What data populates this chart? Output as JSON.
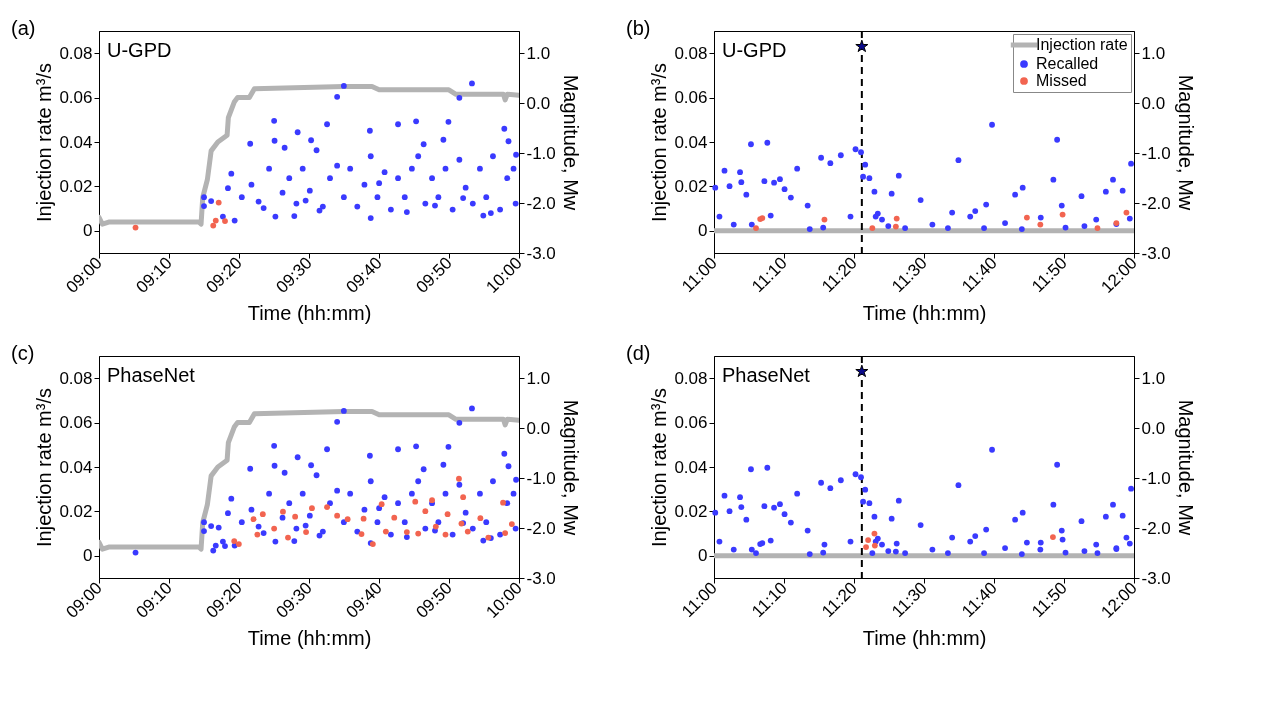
{
  "chart_data": [
    {
      "type": "scatter",
      "xlabel": "Time (hh:mm)",
      "ylabel": "Injection rate m³/s",
      "y2label": "Magnitude, Mw",
      "annotations": [
        "(a)",
        "U-GPD"
      ],
      "xlim": [
        9,
        10
      ],
      "xticks": [
        {
          "value": 9,
          "label": "09:00"
        },
        {
          "value": 9.1667,
          "label": "09:10"
        },
        {
          "value": 9.3333,
          "label": "09:20"
        },
        {
          "value": 9.5,
          "label": "09:30"
        },
        {
          "value": 9.6667,
          "label": "09:40"
        },
        {
          "value": 9.8333,
          "label": "09:50"
        },
        {
          "value": 10,
          "label": "10:00"
        }
      ],
      "ylim": [
        -0.01,
        0.09
      ],
      "yticks": [
        0,
        0.02,
        0.04,
        0.06,
        0.08
      ],
      "y2lim": [
        -3.0,
        1.45
      ],
      "y2ticks": [
        {
          "value": -3,
          "label": "-3.0"
        },
        {
          "value": -2,
          "label": "-2.0"
        },
        {
          "value": -1,
          "label": "-1.0"
        },
        {
          "value": 0,
          "label": "0.0"
        },
        {
          "value": 1,
          "label": "1.0"
        }
      ],
      "series": [
        {
          "type": "line",
          "color": "#b3b3b3",
          "x": [
            9,
            9.008,
            9.025,
            9.238,
            9.243,
            9.247,
            9.258,
            9.267,
            9.283,
            9.305,
            9.308,
            9.322,
            9.33,
            9.358,
            9.37,
            9.583,
            9.65,
            9.667,
            9.833,
            9.85,
            9.963,
            9.967,
            9.972,
            10
          ],
          "values": [
            0.006,
            0.003,
            0.004,
            0.004,
            0.003,
            0.015,
            0.023,
            0.036,
            0.04,
            0.043,
            0.051,
            0.058,
            0.06,
            0.06,
            0.064,
            0.065,
            0.065,
            0.0635,
            0.0635,
            0.0615,
            0.0615,
            0.059,
            0.0615,
            0.061
          ]
        },
        {
          "axis": "y2",
          "marker": "circle",
          "color": "#3a3aff",
          "x": [
            9.583,
            9.567,
            9.888,
            9.858,
            9.417,
            9.543,
            9.755,
            9.832,
            9.965,
            9.473,
            9.645,
            9.712,
            9.418,
            9.505,
            9.82,
            9.975,
            9.36,
            9.442,
            9.773,
            9.993,
            9.315,
            9.307,
            9.25,
            9.25,
            9.267,
            9.295,
            9.323,
            9.42,
            9.647,
            9.915,
            9.465,
            9.34,
            9.363,
            9.38,
            9.405,
            9.437,
            9.453,
            9.47,
            9.485,
            9.502,
            9.518,
            9.533,
            9.55,
            9.567,
            9.583,
            9.598,
            9.615,
            9.632,
            9.647,
            9.663,
            9.68,
            9.695,
            9.712,
            9.728,
            9.745,
            9.76,
            9.777,
            9.793,
            9.808,
            9.825,
            9.842,
            9.858,
            9.873,
            9.89,
            9.907,
            9.922,
            9.938,
            9.955,
            9.972,
            9.987,
            9.992,
            9.392,
            9.525,
            9.733,
            9.8,
            9.933,
            9.492,
            9.667,
            9.867
          ],
          "values": [
            0.35,
            0.13,
            0.4,
            0.11,
            -0.35,
            -0.42,
            -0.36,
            -0.37,
            -0.51,
            -0.58,
            -0.55,
            -0.42,
            -0.75,
            -0.74,
            -0.73,
            -0.76,
            -0.81,
            -0.89,
            -0.82,
            -1.03,
            -1.41,
            -1.7,
            -1.88,
            -2.06,
            -1.96,
            -2.27,
            -2.35,
            -2.27,
            -2.3,
            -2.25,
            -2.26,
            -1.88,
            -1.63,
            -1.97,
            -1.31,
            -1.79,
            -1.5,
            -2.01,
            -1.31,
            -1.75,
            -0.94,
            -2.07,
            -1.5,
            -1.25,
            -1.88,
            -1.31,
            -2.07,
            -1.63,
            -1.06,
            -1.88,
            -1.38,
            -2.13,
            -1.5,
            -1.88,
            -1.31,
            -1.06,
            -2.01,
            -1.5,
            -1.88,
            -1.31,
            -2.13,
            -1.13,
            -1.69,
            -2.01,
            -1.31,
            -1.88,
            -1.06,
            -2.13,
            -1.5,
            -1.31,
            -2.01,
            -2.1,
            -2.15,
            -2.18,
            -2.05,
            -2.2,
            -1.95,
            -1.6,
            -1.9
          ]
        },
        {
          "axis": "y2",
          "marker": "circle",
          "color": "#f26450",
          "x": [
            9.087,
            9.272,
            9.278,
            9.285,
            9.3
          ],
          "values": [
            -2.49,
            -2.45,
            -2.35,
            -1.99,
            -2.36
          ]
        }
      ]
    },
    {
      "type": "scatter",
      "xlabel": "Time (hh:mm)",
      "ylabel": "Injection rate m³/s",
      "y2label": "Magnitude, Mw",
      "annotations": [
        "(b)",
        "U-GPD"
      ],
      "legend": "top right",
      "xlim": [
        11,
        12
      ],
      "xticks": [
        {
          "value": 11,
          "label": "11:00"
        },
        {
          "value": 11.1667,
          "label": "11:10"
        },
        {
          "value": 11.3333,
          "label": "11:20"
        },
        {
          "value": 11.5,
          "label": "11:30"
        },
        {
          "value": 11.6667,
          "label": "11:40"
        },
        {
          "value": 11.8333,
          "label": "11:50"
        },
        {
          "value": 12,
          "label": "12:00"
        }
      ],
      "ylim": [
        -0.01,
        0.09
      ],
      "yticks": [
        0,
        0.02,
        0.04,
        0.06,
        0.08
      ],
      "y2lim": [
        -3.0,
        1.45
      ],
      "y2ticks": [
        {
          "value": -3,
          "label": "-3.0"
        },
        {
          "value": -2,
          "label": "-2.0"
        },
        {
          "value": -1,
          "label": "-1.0"
        },
        {
          "value": 0,
          "label": "0.0"
        },
        {
          "value": 1,
          "label": "1.0"
        }
      ],
      "ref_lines": [
        {
          "axis": "x",
          "value": 11.352,
          "color": "#000000",
          "line_style": "dashed"
        }
      ],
      "series": [
        {
          "name": "Injection rate",
          "type": "line",
          "color": "#b3b3b3",
          "x": [
            11,
            12
          ],
          "values": [
            0,
            0
          ]
        },
        {
          "name": "Recalled",
          "axis": "y2",
          "marker": "circle",
          "color": "#3a3aff",
          "x": [
            11.003,
            11.025,
            11.037,
            11.013,
            11.062,
            11.065,
            11.077,
            11.088,
            11.127,
            11.12,
            11.143,
            11.157,
            11.168,
            11.183,
            11.198,
            11.223,
            11.255,
            11.277,
            11.302,
            11.337,
            11.35,
            11.355,
            11.36,
            11.37,
            11.382,
            11.39,
            11.44,
            11.423,
            11.492,
            11.582,
            11.662,
            11.648,
            11.717,
            11.735,
            11.808,
            11.817,
            11.828,
            11.875,
            11.933,
            11.95,
            11.973,
            11.993,
            11.99,
            11.047,
            11.09,
            11.135,
            11.228,
            11.26,
            11.325,
            11.415,
            11.455,
            11.52,
            11.557,
            11.61,
            11.643,
            11.693,
            11.733,
            11.778,
            11.837,
            11.882,
            11.91,
            11.958,
            11.567,
            11.622,
            11.385,
            11.4
          ],
          "values": [
            -1.69,
            -1.35,
            -1.66,
            -2.27,
            -1.38,
            -1.58,
            -1.83,
            -0.82,
            -0.79,
            -1.56,
            -1.59,
            -1.52,
            -1.72,
            -1.89,
            -1.31,
            -2.05,
            -1.09,
            -1.2,
            -1.04,
            -0.92,
            -0.98,
            -1.47,
            -1.23,
            -1.5,
            -1.77,
            -2.21,
            -1.45,
            -1.81,
            -1.94,
            -1.14,
            -0.43,
            -2.03,
            -1.83,
            -1.69,
            -1.53,
            -0.73,
            -2.05,
            -1.86,
            -1.77,
            -1.53,
            -1.75,
            -1.21,
            -2.31,
            -2.43,
            -2.43,
            -2.25,
            -2.52,
            -2.49,
            -2.27,
            -2.46,
            -2.5,
            -2.43,
            -2.5,
            -2.27,
            -2.5,
            -2.4,
            -2.52,
            -2.29,
            -2.49,
            -2.46,
            -2.33,
            -2.42,
            -2.19,
            -2.16,
            -2.27,
            -2.33
          ]
        },
        {
          "name": "Missed",
          "axis": "y2",
          "marker": "circle",
          "color": "#f26450",
          "x": [
            11.11,
            11.115,
            11.1,
            11.263,
            11.377,
            11.435,
            11.433,
            11.745,
            11.777,
            11.83,
            11.913,
            11.958,
            11.982
          ],
          "values": [
            -2.32,
            -2.3,
            -2.5,
            -2.33,
            -2.5,
            -2.31,
            -2.47,
            -2.29,
            -2.43,
            -2.23,
            -2.5,
            -2.4,
            -2.19
          ]
        },
        {
          "axis": "y2",
          "marker": "star",
          "color": "#0a0a8c",
          "x": [
            11.352
          ],
          "values": [
            1.14
          ]
        }
      ]
    },
    {
      "type": "scatter",
      "xlabel": "Time (hh:mm)",
      "ylabel": "Injection rate m³/s",
      "y2label": "Magnitude, Mw",
      "annotations": [
        "(c)",
        "PhaseNet"
      ],
      "xlim": [
        9,
        10
      ],
      "xticks": [
        {
          "value": 9,
          "label": "09:00"
        },
        {
          "value": 9.1667,
          "label": "09:10"
        },
        {
          "value": 9.3333,
          "label": "09:20"
        },
        {
          "value": 9.5,
          "label": "09:30"
        },
        {
          "value": 9.6667,
          "label": "09:40"
        },
        {
          "value": 9.8333,
          "label": "09:50"
        },
        {
          "value": 10,
          "label": "10:00"
        }
      ],
      "ylim": [
        -0.01,
        0.09
      ],
      "yticks": [
        0,
        0.02,
        0.04,
        0.06,
        0.08
      ],
      "y2lim": [
        -3.0,
        1.45
      ],
      "y2ticks": [
        {
          "value": -3,
          "label": "-3.0"
        },
        {
          "value": -2,
          "label": "-2.0"
        },
        {
          "value": -1,
          "label": "-1.0"
        },
        {
          "value": 0,
          "label": "0.0"
        },
        {
          "value": 1,
          "label": "1.0"
        }
      ],
      "series": [
        {
          "type": "line",
          "color": "#b3b3b3",
          "x": [
            9,
            9.008,
            9.025,
            9.238,
            9.243,
            9.247,
            9.258,
            9.267,
            9.283,
            9.305,
            9.308,
            9.322,
            9.33,
            9.358,
            9.37,
            9.583,
            9.65,
            9.667,
            9.833,
            9.85,
            9.963,
            9.967,
            9.972,
            10
          ],
          "values": [
            0.006,
            0.003,
            0.004,
            0.004,
            0.003,
            0.015,
            0.023,
            0.036,
            0.04,
            0.043,
            0.051,
            0.058,
            0.06,
            0.06,
            0.064,
            0.065,
            0.065,
            0.0635,
            0.0635,
            0.0615,
            0.0615,
            0.059,
            0.0615,
            0.061
          ]
        },
        {
          "axis": "y2",
          "marker": "circle",
          "color": "#3a3aff",
          "x": [
            9.583,
            9.567,
            9.888,
            9.858,
            9.417,
            9.543,
            9.755,
            9.832,
            9.965,
            9.473,
            9.645,
            9.712,
            9.418,
            9.505,
            9.82,
            9.975,
            9.36,
            9.442,
            9.773,
            9.993,
            9.315,
            9.307,
            9.25,
            9.25,
            9.267,
            9.295,
            9.323,
            9.42,
            9.647,
            9.915,
            9.465,
            9.34,
            9.363,
            9.38,
            9.405,
            9.437,
            9.453,
            9.47,
            9.485,
            9.502,
            9.518,
            9.533,
            9.55,
            9.567,
            9.583,
            9.598,
            9.615,
            9.632,
            9.647,
            9.663,
            9.68,
            9.695,
            9.712,
            9.728,
            9.745,
            9.76,
            9.777,
            9.793,
            9.808,
            9.825,
            9.842,
            9.858,
            9.873,
            9.89,
            9.907,
            9.922,
            9.938,
            9.955,
            9.972,
            9.987,
            9.992,
            9.392,
            9.525,
            9.733,
            9.8,
            9.933,
            9.492,
            9.667,
            9.867,
            9.087,
            9.272,
            9.278,
            9.285,
            9.3
          ],
          "values": [
            0.35,
            0.13,
            0.4,
            0.11,
            -0.35,
            -0.42,
            -0.36,
            -0.37,
            -0.51,
            -0.58,
            -0.55,
            -0.42,
            -0.75,
            -0.74,
            -0.73,
            -0.76,
            -0.81,
            -0.89,
            -0.82,
            -1.03,
            -1.41,
            -1.7,
            -1.88,
            -2.06,
            -1.96,
            -2.27,
            -2.35,
            -2.27,
            -2.3,
            -2.25,
            -2.26,
            -1.88,
            -1.63,
            -1.97,
            -1.31,
            -1.79,
            -1.5,
            -2.01,
            -1.31,
            -1.75,
            -0.94,
            -2.07,
            -1.5,
            -1.25,
            -1.88,
            -1.31,
            -2.07,
            -1.63,
            -1.06,
            -1.88,
            -1.38,
            -2.13,
            -1.5,
            -1.88,
            -1.31,
            -1.06,
            -2.01,
            -1.5,
            -1.88,
            -1.31,
            -2.13,
            -1.13,
            -1.69,
            -2.01,
            -1.31,
            -1.88,
            -1.06,
            -2.13,
            -1.5,
            -1.31,
            -2.01,
            -2.1,
            -2.15,
            -2.18,
            -2.05,
            -2.2,
            -1.95,
            -1.6,
            -1.9,
            -2.49,
            -2.45,
            -2.35,
            -1.99,
            -2.36
          ]
        },
        {
          "axis": "y2",
          "marker": "circle",
          "color": "#f26450",
          "x": [
            9.39,
            9.368,
            9.322,
            9.333,
            9.377,
            9.417,
            9.438,
            9.45,
            9.467,
            9.493,
            9.507,
            9.543,
            9.567,
            9.592,
            9.625,
            9.63,
            9.652,
            9.673,
            9.683,
            9.703,
            9.733,
            9.753,
            9.76,
            9.777,
            9.793,
            9.802,
            9.825,
            9.83,
            9.857,
            9.863,
            9.867,
            9.878,
            9.908,
            9.927,
            9.962,
            9.967,
            9.983
          ],
          "values": [
            -1.72,
            -1.82,
            -2.26,
            -2.32,
            -2.13,
            -2.01,
            -1.67,
            -2.19,
            -1.77,
            -2.08,
            -1.6,
            -1.58,
            -1.75,
            -1.82,
            -2.12,
            -1.81,
            -2.32,
            -1.52,
            -2.07,
            -1.79,
            -2.08,
            -1.47,
            -2.11,
            -1.66,
            -1.44,
            -1.97,
            -2.13,
            -1.72,
            -1.01,
            -1.91,
            -1.38,
            -2.07,
            -1.8,
            -2.19,
            -1.49,
            -2.1,
            -1.92
          ]
        }
      ]
    },
    {
      "type": "scatter",
      "xlabel": "Time (hh:mm)",
      "ylabel": "Injection rate m³/s",
      "y2label": "Magnitude, Mw",
      "annotations": [
        "(d)",
        "PhaseNet"
      ],
      "xlim": [
        11,
        12
      ],
      "xticks": [
        {
          "value": 11,
          "label": "11:00"
        },
        {
          "value": 11.1667,
          "label": "11:10"
        },
        {
          "value": 11.3333,
          "label": "11:20"
        },
        {
          "value": 11.5,
          "label": "11:30"
        },
        {
          "value": 11.6667,
          "label": "11:40"
        },
        {
          "value": 11.8333,
          "label": "11:50"
        },
        {
          "value": 12,
          "label": "12:00"
        }
      ],
      "ylim": [
        -0.01,
        0.09
      ],
      "yticks": [
        0,
        0.02,
        0.04,
        0.06,
        0.08
      ],
      "y2lim": [
        -3.0,
        1.45
      ],
      "y2ticks": [
        {
          "value": -3,
          "label": "-3.0"
        },
        {
          "value": -2,
          "label": "-2.0"
        },
        {
          "value": -1,
          "label": "-1.0"
        },
        {
          "value": 0,
          "label": "0.0"
        },
        {
          "value": 1,
          "label": "1.0"
        }
      ],
      "ref_lines": [
        {
          "axis": "x",
          "value": 11.352,
          "color": "#000000",
          "line_style": "dashed"
        }
      ],
      "series": [
        {
          "type": "line",
          "color": "#b3b3b3",
          "x": [
            11,
            12
          ],
          "values": [
            0,
            0
          ]
        },
        {
          "axis": "y2",
          "marker": "circle",
          "color": "#3a3aff",
          "x": [
            11.003,
            11.025,
            11.037,
            11.013,
            11.062,
            11.065,
            11.077,
            11.088,
            11.127,
            11.12,
            11.143,
            11.157,
            11.168,
            11.183,
            11.198,
            11.223,
            11.255,
            11.277,
            11.302,
            11.337,
            11.35,
            11.355,
            11.36,
            11.37,
            11.382,
            11.39,
            11.44,
            11.423,
            11.492,
            11.582,
            11.662,
            11.648,
            11.717,
            11.735,
            11.808,
            11.817,
            11.828,
            11.875,
            11.933,
            11.95,
            11.973,
            11.993,
            11.99,
            11.047,
            11.09,
            11.135,
            11.228,
            11.26,
            11.325,
            11.415,
            11.455,
            11.52,
            11.557,
            11.61,
            11.643,
            11.693,
            11.733,
            11.778,
            11.837,
            11.882,
            11.91,
            11.958,
            11.567,
            11.622,
            11.385,
            11.4,
            11.11,
            11.115,
            11.1,
            11.263,
            11.377,
            11.435,
            11.433,
            11.745,
            11.777,
            11.83,
            11.913,
            11.958,
            11.982
          ],
          "values": [
            -1.69,
            -1.35,
            -1.66,
            -2.27,
            -1.38,
            -1.58,
            -1.83,
            -0.82,
            -0.79,
            -1.56,
            -1.59,
            -1.52,
            -1.72,
            -1.89,
            -1.31,
            -2.05,
            -1.09,
            -1.2,
            -1.04,
            -0.92,
            -0.98,
            -1.47,
            -1.23,
            -1.5,
            -1.77,
            -2.21,
            -1.45,
            -1.81,
            -1.94,
            -1.14,
            -0.43,
            -2.03,
            -1.83,
            -1.69,
            -1.53,
            -0.73,
            -2.05,
            -1.86,
            -1.77,
            -1.53,
            -1.75,
            -1.21,
            -2.31,
            -2.43,
            -2.43,
            -2.25,
            -2.52,
            -2.49,
            -2.27,
            -2.46,
            -2.5,
            -2.43,
            -2.5,
            -2.27,
            -2.5,
            -2.4,
            -2.52,
            -2.29,
            -2.49,
            -2.46,
            -2.33,
            -2.42,
            -2.19,
            -2.16,
            -2.27,
            -2.33,
            -2.32,
            -2.3,
            -2.5,
            -2.33,
            -2.5,
            -2.31,
            -2.47,
            -2.29,
            -2.43,
            -2.23,
            -2.5,
            -2.4,
            -2.19
          ]
        },
        {
          "axis": "y2",
          "marker": "circle",
          "color": "#f26450",
          "x": [
            11.382,
            11.367,
            11.362,
            11.383,
            11.807
          ],
          "values": [
            -2.11,
            -2.24,
            -2.38,
            -2.35,
            -2.18
          ]
        },
        {
          "axis": "y2",
          "marker": "star",
          "color": "#0a0a8c",
          "x": [
            11.352
          ],
          "values": [
            1.14
          ]
        }
      ]
    }
  ]
}
